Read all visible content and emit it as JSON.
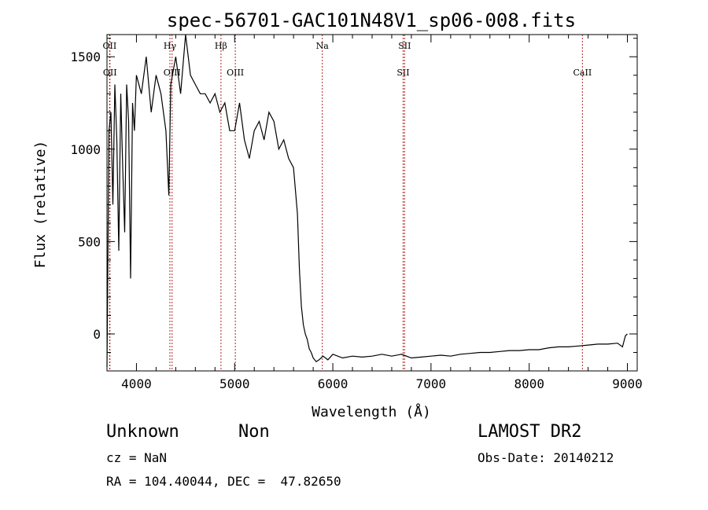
{
  "chart_data": {
    "type": "line",
    "title": "spec-56701-GAC101N48V1_sp06-008.fits",
    "xlabel": "Wavelength (Å)",
    "ylabel": "Flux (relative)",
    "xlim": [
      3700,
      9100
    ],
    "ylim": [
      -200,
      1620
    ],
    "xticks": [
      4000,
      5000,
      6000,
      7000,
      8000,
      9000
    ],
    "yticks": [
      0,
      500,
      1000,
      1500
    ],
    "grid": false,
    "series": [
      {
        "x": [
          3700,
          3720,
          3740,
          3760,
          3780,
          3800,
          3820,
          3840,
          3860,
          3880,
          3900,
          3920,
          3940,
          3960,
          3980,
          4000,
          4050,
          4100,
          4150,
          4200,
          4250,
          4300,
          4330,
          4350,
          4400,
          4450,
          4500,
          4550,
          4600,
          4650,
          4700,
          4750,
          4800,
          4850,
          4900,
          4950,
          5000,
          5050,
          5100,
          5150,
          5200,
          5250,
          5300,
          5350,
          5400,
          5450,
          5500,
          5550,
          5600,
          5640,
          5660,
          5680,
          5700,
          5720,
          5740,
          5760,
          5780,
          5800,
          5830,
          5860,
          5900,
          5950,
          6000,
          6100,
          6200,
          6300,
          6400,
          6500,
          6600,
          6700,
          6800,
          6900,
          7000,
          7100,
          7200,
          7300,
          7400,
          7500,
          7600,
          7700,
          7800,
          7900,
          8000,
          8100,
          8200,
          8300,
          8400,
          8500,
          8600,
          8700,
          8800,
          8900,
          8950,
          8980,
          9000
        ],
        "y": [
          -180,
          1100,
          1200,
          700,
          1350,
          1050,
          450,
          1300,
          900,
          550,
          1350,
          1150,
          300,
          1250,
          1100,
          1400,
          1300,
          1500,
          1200,
          1400,
          1300,
          1100,
          750,
          1350,
          1500,
          1300,
          1620,
          1400,
          1350,
          1300,
          1300,
          1250,
          1300,
          1200,
          1250,
          1100,
          1100,
          1250,
          1050,
          950,
          1100,
          1150,
          1050,
          1200,
          1150,
          1000,
          1050,
          950,
          900,
          650,
          350,
          150,
          50,
          0,
          -30,
          -80,
          -100,
          -130,
          -150,
          -140,
          -120,
          -140,
          -110,
          -130,
          -120,
          -125,
          -120,
          -110,
          -120,
          -110,
          -130,
          -125,
          -120,
          -115,
          -120,
          -110,
          -105,
          -100,
          -100,
          -95,
          -90,
          -90,
          -85,
          -85,
          -75,
          -70,
          -70,
          -65,
          -60,
          -55,
          -55,
          -50,
          -70,
          -10,
          0
        ]
      }
    ],
    "lines": [
      {
        "x": 3727,
        "label": "OII"
      },
      {
        "x": 3730,
        "label": "OII"
      },
      {
        "x": 4341,
        "label": "Hγ"
      },
      {
        "x": 4363,
        "label": "OIII"
      },
      {
        "x": 4861,
        "label": "Hβ"
      },
      {
        "x": 5007,
        "label": "OIII"
      },
      {
        "x": 5893,
        "label": "Na"
      },
      {
        "x": 6716,
        "label": "SII"
      },
      {
        "x": 6731,
        "label": "SII"
      },
      {
        "x": 8542,
        "label": "CaII"
      }
    ]
  },
  "footer": {
    "class_name": "Unknown",
    "subclass": "Non",
    "survey": "LAMOST DR2",
    "cz": "cz = NaN",
    "obs_date": "Obs-Date: 20140212",
    "coords": "RA = 104.40044, DEC =  47.82650"
  }
}
